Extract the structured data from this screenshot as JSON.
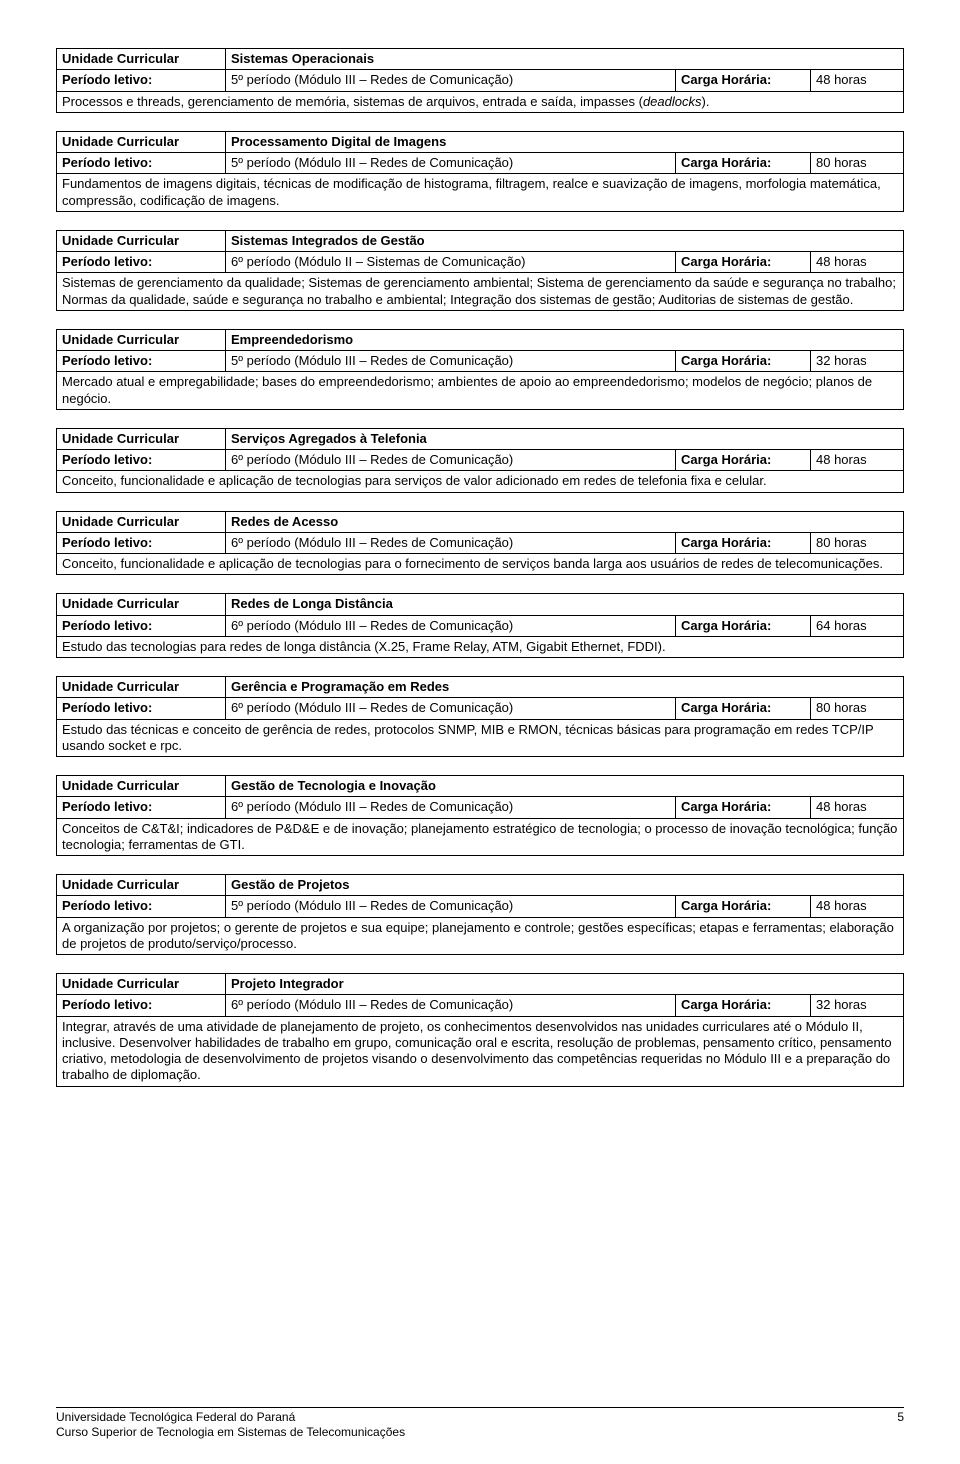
{
  "labels": {
    "unidade": "Unidade Curricular",
    "periodo": "Período letivo:",
    "carga": "Carga Horária:"
  },
  "units": [
    {
      "title": "Sistemas Operacionais",
      "periodo": "5º período (Módulo III – Redes de Comunicação)",
      "horas": "48 horas",
      "desc": "Processos e threads, gerenciamento de memória, sistemas de arquivos, entrada e saída, impasses (<i>deadlocks</i>)."
    },
    {
      "title": "Processamento Digital de Imagens",
      "periodo": "5º período (Módulo III – Redes de Comunicação)",
      "horas": "80 horas",
      "desc": "Fundamentos de imagens digitais, técnicas de modificação de histograma, filtragem, realce e suavização de imagens, morfologia matemática, compressão, codificação de imagens."
    },
    {
      "title": "Sistemas Integrados de Gestão",
      "periodo": "6º período (Módulo II – Sistemas de Comunicação)",
      "horas": "48 horas",
      "desc": "Sistemas de gerenciamento da qualidade; Sistemas de gerenciamento ambiental; Sistema de gerenciamento da saúde e segurança no trabalho; Normas da qualidade, saúde e segurança no trabalho e ambiental; Integração dos sistemas de gestão; Auditorias de sistemas de gestão."
    },
    {
      "title": "Empreendedorismo",
      "periodo": "5º período (Módulo III – Redes de Comunicação)",
      "horas": "32 horas",
      "desc": "Mercado atual e empregabilidade; bases do empreendedorismo; ambientes de apoio ao empreendedorismo; modelos de negócio; planos de negócio."
    },
    {
      "title": "Serviços Agregados à Telefonia",
      "periodo": "6º período (Módulo III – Redes de Comunicação)",
      "horas": "48 horas",
      "desc": "Conceito, funcionalidade e aplicação de tecnologias para serviços de valor adicionado em redes de telefonia fixa e celular."
    },
    {
      "title": "Redes de Acesso",
      "periodo": "6º período (Módulo III – Redes de Comunicação)",
      "horas": "80 horas",
      "desc": "Conceito, funcionalidade e aplicação de tecnologias para o fornecimento de serviços banda larga aos usuários de redes de telecomunicações."
    },
    {
      "title": "Redes de Longa Distância",
      "periodo": "6º período (Módulo III – Redes de Comunicação)",
      "horas": "64 horas",
      "desc": "Estudo das tecnologias para redes de longa distância (X.25, Frame Relay, ATM, Gigabit Ethernet, FDDI)."
    },
    {
      "title": "Gerência e Programação em Redes",
      "periodo": "6º período (Módulo III – Redes de Comunicação)",
      "horas": "80 horas",
      "desc": "Estudo das técnicas e conceito de gerência de redes, protocolos SNMP, MIB e RMON, técnicas básicas para programação em redes TCP/IP usando socket e rpc."
    },
    {
      "title": "Gestão de Tecnologia e Inovação",
      "periodo": "6º período (Módulo III – Redes de Comunicação)",
      "horas": "48 horas",
      "desc": "Conceitos de C&T&I; indicadores de P&D&E e de inovação; planejamento estratégico de tecnologia; o processo de inovação tecnológica; função tecnologia; ferramentas de GTI."
    },
    {
      "title": "Gestão de Projetos",
      "periodo": "5º período (Módulo III – Redes de Comunicação)",
      "horas": "48 horas",
      "desc": "A organização por projetos; o gerente de projetos e sua equipe; planejamento e controle; gestões específicas; etapas e ferramentas; elaboração de projetos de produto/serviço/processo."
    },
    {
      "title": "Projeto Integrador",
      "periodo": "6º período (Módulo III – Redes de Comunicação)",
      "horas": "32 horas",
      "desc": "Integrar, através de uma atividade de planejamento de projeto, os conhecimentos desenvolvidos nas unidades curriculares até o Módulo II, inclusive. Desenvolver habilidades de trabalho em grupo, comunicação oral e escrita, resolução de problemas, pensamento crítico, pensamento criativo, metodologia de desenvolvimento de projetos visando o desenvolvimento das competências requeridas no Módulo III e a preparação do trabalho de diplomação."
    }
  ],
  "footer": {
    "line1": "Universidade Tecnológica Federal do Paraná",
    "line2": "Curso Superior de Tecnologia em Sistemas de Telecomunicações",
    "page": "5"
  }
}
